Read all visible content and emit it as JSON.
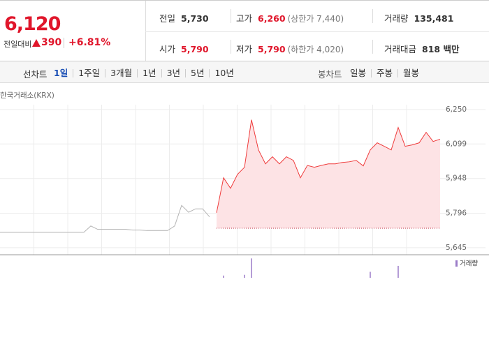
{
  "header": {
    "price": "6,120",
    "change_label": "전일대비",
    "change": "390",
    "change_rate": "+6.81%",
    "stats": [
      {
        "label": "전일",
        "value": "5,730"
      },
      {
        "label": "고가",
        "value": "6,260",
        "note": "(상한가 7,440)"
      },
      {
        "label": "거래량",
        "value": "135,481"
      },
      {
        "label": "시가",
        "value": "5,790"
      },
      {
        "label": "저가",
        "value": "5,790",
        "note": "(하한가 4,020)"
      },
      {
        "label": "거래대금",
        "value": "818 백만"
      }
    ]
  },
  "tabs": {
    "line_label": "선차트",
    "line_periods": [
      "1일",
      "1주일",
      "3개월",
      "1년",
      "3년",
      "5년",
      "10년"
    ],
    "candle_label": "봉차트",
    "candle_periods": [
      "일봉",
      "주봉",
      "월봉"
    ]
  },
  "chart_data": {
    "type": "line",
    "source": "한국거래소(KRX)",
    "categories": [
      null,
      null,
      null,
      null,
      null,
      null,
      null,
      null,
      null,
      null,
      null,
      null,
      null,
      null,
      null,
      null,
      null,
      null,
      null,
      null,
      null,
      null,
      null,
      null,
      null,
      null,
      null,
      null,
      null,
      null,
      null,
      null,
      null,
      null,
      null,
      null,
      null,
      null,
      null,
      null,
      null,
      null,
      null,
      null,
      null,
      null,
      null,
      null,
      null,
      null,
      null,
      null,
      null,
      null,
      null,
      null,
      null,
      null,
      null,
      null,
      null,
      null,
      null,
      null
    ],
    "ylim": [
      5614,
      6271
    ],
    "yticks": [
      {
        "value": 6250,
        "label": "6,250"
      },
      {
        "value": 6099,
        "label": "6,099"
      },
      {
        "value": 5948,
        "label": "5,948"
      },
      {
        "value": 5796,
        "label": "5,796"
      },
      {
        "value": 5645,
        "label": "5,645"
      }
    ],
    "prev_close": 5730,
    "series": [
      {
        "color": "#b4b4b4",
        "values": [
          5712,
          5712,
          5712,
          5712,
          5712,
          5712,
          5712,
          5712,
          5712,
          5712,
          5712,
          5712,
          5712,
          5740,
          5725,
          5725,
          5725,
          5725,
          5725,
          5722,
          5722,
          5720,
          5720,
          5720,
          5720,
          5740,
          5830,
          5800,
          5815,
          5815,
          5780,
          null,
          null,
          null,
          null,
          null,
          null,
          null,
          null,
          null,
          null,
          null,
          null,
          null,
          null,
          null,
          null,
          null,
          null,
          null,
          null,
          null,
          null,
          null,
          null,
          null,
          null,
          null,
          null,
          null,
          null,
          null,
          null,
          null
        ]
      },
      {
        "color": "#ef3b3b",
        "fill": "#fde3e5",
        "values": [
          null,
          null,
          null,
          null,
          null,
          null,
          null,
          null,
          null,
          null,
          null,
          null,
          null,
          null,
          null,
          null,
          null,
          null,
          null,
          null,
          null,
          null,
          null,
          null,
          null,
          null,
          null,
          null,
          null,
          null,
          null,
          5798,
          5951,
          5905,
          5966,
          5997,
          6205,
          6073,
          6012,
          6043,
          6012,
          6043,
          6027,
          5951,
          6005,
          5997,
          6005,
          6012,
          6012,
          6018,
          6021,
          6027,
          6003,
          6073,
          6104,
          6089,
          6073,
          6171,
          6089,
          6095,
          6104,
          6150,
          6110,
          6120
        ]
      }
    ],
    "volume": {
      "name": "거래량",
      "color": "#9b7cc8",
      "vlim": [
        0,
        30000
      ],
      "values": [
        null,
        null,
        null,
        null,
        null,
        null,
        null,
        null,
        null,
        null,
        null,
        null,
        null,
        null,
        null,
        null,
        null,
        null,
        null,
        null,
        null,
        null,
        null,
        null,
        null,
        null,
        null,
        null,
        null,
        null,
        null,
        null,
        3000,
        null,
        null,
        4000,
        26000,
        null,
        null,
        null,
        null,
        null,
        null,
        null,
        null,
        null,
        null,
        null,
        null,
        null,
        null,
        null,
        null,
        8000,
        null,
        null,
        null,
        16000,
        null,
        null,
        null,
        null,
        null,
        null
      ]
    }
  }
}
